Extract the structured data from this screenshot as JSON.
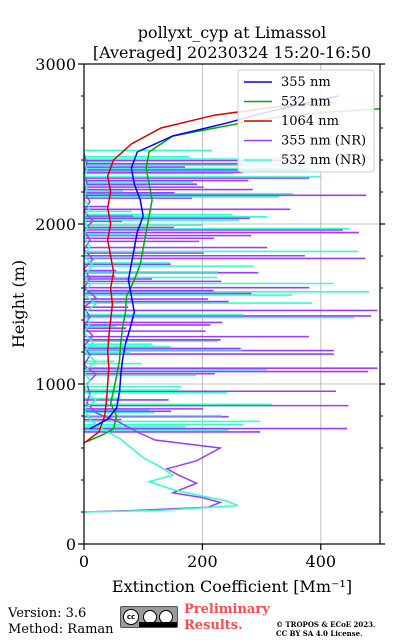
{
  "chart_data": {
    "type": "line",
    "title_line1": "pollyxt_cyp at Limassol",
    "title_line2": "[Averaged] 20230324 15:20-16:50",
    "xlabel": "Extinction Coefficient [Mm⁻¹]",
    "ylabel": "Height (m)",
    "xlim": [
      0,
      500
    ],
    "ylim": [
      0,
      3000
    ],
    "xticks": [
      "0",
      "200",
      "400"
    ],
    "yticks": [
      "0",
      "1000",
      "2000",
      "3000"
    ],
    "grid": true,
    "legend_position": "top-right",
    "series": [
      {
        "name": "355 nm",
        "color": "#0000ff",
        "points": [
          [
            10,
            720
          ],
          [
            40,
            780
          ],
          [
            55,
            850
          ],
          [
            60,
            950
          ],
          [
            62,
            1050
          ],
          [
            65,
            1150
          ],
          [
            70,
            1250
          ],
          [
            78,
            1350
          ],
          [
            85,
            1450
          ],
          [
            80,
            1550
          ],
          [
            75,
            1650
          ],
          [
            80,
            1750
          ],
          [
            85,
            1850
          ],
          [
            90,
            1950
          ],
          [
            100,
            2050
          ],
          [
            95,
            2150
          ],
          [
            85,
            2250
          ],
          [
            80,
            2350
          ],
          [
            90,
            2450
          ],
          [
            150,
            2550
          ],
          [
            240,
            2630
          ],
          [
            310,
            2700
          ],
          [
            380,
            2760
          ],
          [
            430,
            2800
          ]
        ]
      },
      {
        "name": "532 nm",
        "color": "#00aa00",
        "points": [
          [
            5,
            640
          ],
          [
            30,
            680
          ],
          [
            50,
            720
          ],
          [
            55,
            800
          ],
          [
            45,
            880
          ],
          [
            50,
            960
          ],
          [
            55,
            1050
          ],
          [
            60,
            1150
          ],
          [
            62,
            1250
          ],
          [
            65,
            1350
          ],
          [
            70,
            1450
          ],
          [
            72,
            1550
          ],
          [
            85,
            1650
          ],
          [
            95,
            1750
          ],
          [
            100,
            1850
          ],
          [
            105,
            1950
          ],
          [
            110,
            2050
          ],
          [
            115,
            2150
          ],
          [
            110,
            2250
          ],
          [
            105,
            2350
          ],
          [
            110,
            2450
          ],
          [
            150,
            2550
          ],
          [
            250,
            2620
          ],
          [
            330,
            2670
          ],
          [
            420,
            2700
          ],
          [
            500,
            2720
          ]
        ]
      },
      {
        "name": "1064 nm",
        "color": "#dd0000",
        "points": [
          [
            0,
            630
          ],
          [
            25,
            700
          ],
          [
            35,
            800
          ],
          [
            38,
            900
          ],
          [
            40,
            1000
          ],
          [
            42,
            1100
          ],
          [
            40,
            1200
          ],
          [
            42,
            1300
          ],
          [
            45,
            1400
          ],
          [
            48,
            1500
          ],
          [
            45,
            1600
          ],
          [
            50,
            1700
          ],
          [
            45,
            1800
          ],
          [
            40,
            1900
          ],
          [
            45,
            2000
          ],
          [
            40,
            2100
          ],
          [
            45,
            2200
          ],
          [
            40,
            2300
          ],
          [
            50,
            2400
          ],
          [
            80,
            2500
          ],
          [
            130,
            2600
          ],
          [
            220,
            2680
          ],
          [
            320,
            2730
          ],
          [
            420,
            2760
          ]
        ]
      },
      {
        "name": "355 nm (NR)",
        "color": "#9b3dff",
        "points": [
          [
            0,
            200
          ],
          [
            90,
            210
          ],
          [
            210,
            230
          ],
          [
            230,
            260
          ],
          [
            200,
            290
          ],
          [
            150,
            320
          ],
          [
            190,
            380
          ],
          [
            160,
            430
          ],
          [
            140,
            470
          ],
          [
            190,
            520
          ],
          [
            230,
            600
          ],
          [
            120,
            650
          ],
          [
            90,
            700
          ],
          [
            60,
            760
          ],
          [
            20,
            820
          ],
          [
            5,
            880
          ],
          [
            10,
            940
          ],
          [
            5,
            1000
          ],
          [
            20,
            1060
          ],
          [
            0,
            1120
          ],
          [
            10,
            1180
          ],
          [
            0,
            1240
          ],
          [
            15,
            1300
          ],
          [
            0,
            1360
          ],
          [
            10,
            1420
          ],
          [
            0,
            1480
          ],
          [
            20,
            1540
          ],
          [
            0,
            1600
          ],
          [
            10,
            1660
          ],
          [
            0,
            1720
          ],
          [
            15,
            1780
          ],
          [
            0,
            1840
          ],
          [
            10,
            1900
          ],
          [
            0,
            1960
          ],
          [
            15,
            2020
          ],
          [
            0,
            2080
          ],
          [
            10,
            2140
          ],
          [
            0,
            2200
          ],
          [
            5,
            2260
          ],
          [
            0,
            2320
          ],
          [
            5,
            2380
          ],
          [
            0,
            2440
          ]
        ]
      },
      {
        "name": "532 nm (NR)",
        "color": "#33ffcc",
        "points": [
          [
            0,
            200
          ],
          [
            130,
            210
          ],
          [
            260,
            240
          ],
          [
            240,
            270
          ],
          [
            200,
            300
          ],
          [
            150,
            340
          ],
          [
            110,
            390
          ],
          [
            150,
            430
          ],
          [
            130,
            480
          ],
          [
            100,
            540
          ],
          [
            80,
            600
          ],
          [
            60,
            660
          ],
          [
            30,
            720
          ],
          [
            10,
            780
          ],
          [
            0,
            840
          ],
          [
            20,
            900
          ],
          [
            0,
            960
          ],
          [
            10,
            1020
          ],
          [
            0,
            1080
          ],
          [
            20,
            1140
          ],
          [
            0,
            1200
          ],
          [
            15,
            1260
          ],
          [
            0,
            1320
          ],
          [
            10,
            1380
          ],
          [
            0,
            1440
          ],
          [
            20,
            1500
          ],
          [
            0,
            1560
          ],
          [
            10,
            1620
          ],
          [
            0,
            1680
          ],
          [
            15,
            1740
          ],
          [
            0,
            1800
          ],
          [
            10,
            1860
          ],
          [
            0,
            1920
          ],
          [
            5,
            1980
          ],
          [
            0,
            2040
          ],
          [
            10,
            2100
          ],
          [
            0,
            2160
          ],
          [
            5,
            2220
          ],
          [
            0,
            2280
          ],
          [
            5,
            2340
          ],
          [
            0,
            2400
          ]
        ]
      }
    ]
  },
  "footer": {
    "version": "Version: 3.6",
    "method": "Method: Raman",
    "preliminary_line1": "Preliminary",
    "preliminary_line2": "Results.",
    "copyright_line1": "© TROPOS & ECoE 2023.",
    "copyright_line2": "CC BY SA 4.0 License.",
    "badge_text": "cc"
  }
}
